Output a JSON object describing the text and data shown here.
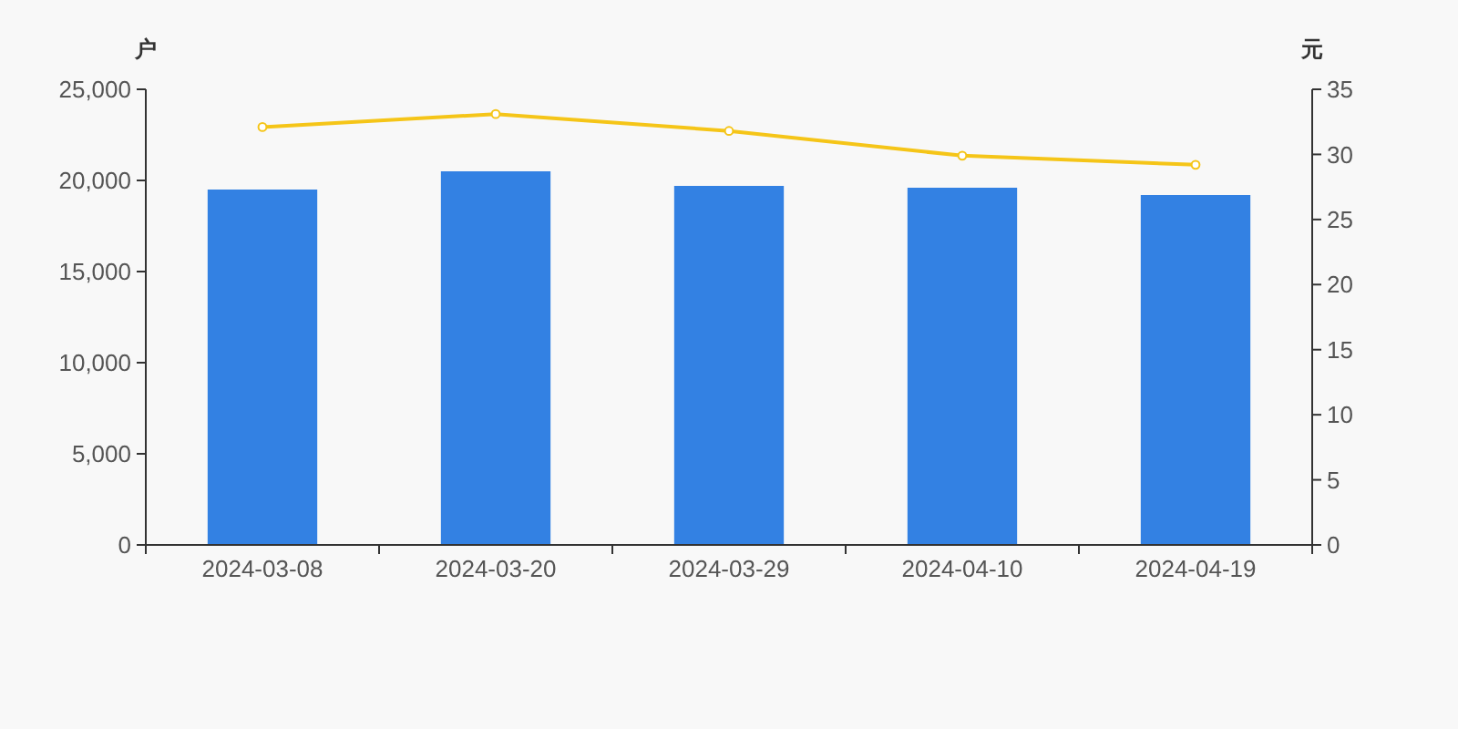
{
  "chart_data": {
    "type": "bar",
    "ylabel": "户",
    "y2label": "元",
    "categories": [
      "2024-03-08",
      "2024-03-20",
      "2024-03-29",
      "2024-04-10",
      "2024-04-19"
    ],
    "series": [
      {
        "color": "#3381e3",
        "values": [
          19500,
          20500,
          19700,
          19600,
          19200
        ]
      },
      {
        "type": "line",
        "axis": "y2",
        "color": "#f5c518",
        "marker": "circle",
        "values": [
          32.1,
          33.1,
          31.8,
          29.9,
          29.2
        ]
      }
    ],
    "ylim": [
      0,
      25000
    ],
    "yticks": [
      {
        "value": 0,
        "label": "0"
      },
      {
        "value": 5000,
        "label": "5,000"
      },
      {
        "value": 10000,
        "label": "10,000"
      },
      {
        "value": 15000,
        "label": "15,000"
      },
      {
        "value": 20000,
        "label": "20,000"
      },
      {
        "value": 25000,
        "label": "25,000"
      }
    ],
    "y2lim": [
      0,
      35
    ],
    "y2ticks": [
      0,
      5,
      10,
      15,
      20,
      25,
      30,
      35
    ],
    "grid": false
  }
}
